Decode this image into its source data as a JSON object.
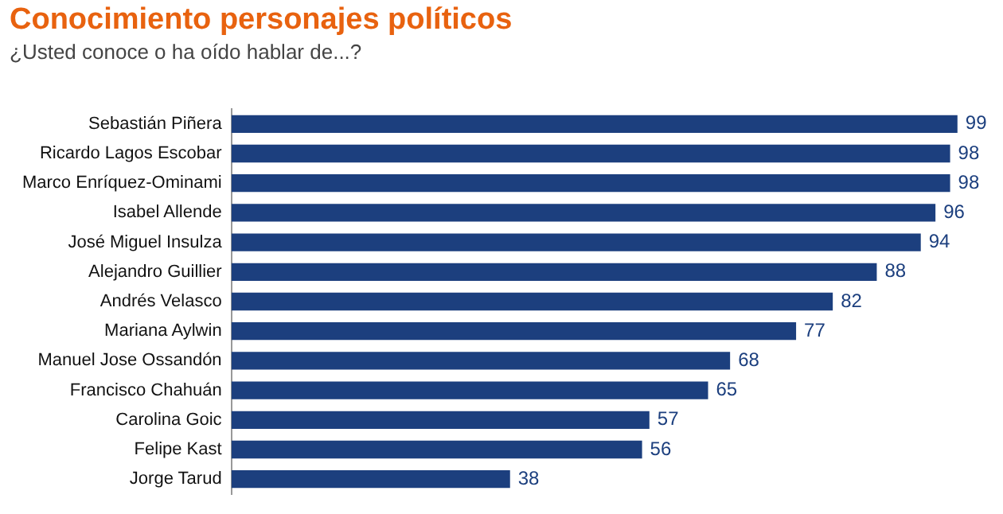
{
  "chart_data": {
    "type": "bar",
    "orientation": "horizontal",
    "title": "Conocimiento personajes políticos",
    "subtitle": "¿Usted conoce o ha oído hablar de...?",
    "categories": [
      "Sebastián Piñera",
      "Ricardo Lagos Escobar",
      "Marco Enríquez-Ominami",
      "Isabel Allende",
      "José Miguel Insulza",
      "Alejandro Guillier",
      "Andrés Velasco",
      "Mariana Aylwin",
      "Manuel Jose Ossandón",
      "Francisco Chahuán",
      "Carolina Goic",
      "Felipe Kast",
      "Jorge Tarud"
    ],
    "values": [
      99,
      98,
      98,
      96,
      94,
      88,
      82,
      77,
      68,
      65,
      57,
      56,
      38
    ],
    "color": "#1c3f7e",
    "data_labels": true,
    "tick_labels": "y",
    "grid": false,
    "legend": false
  }
}
